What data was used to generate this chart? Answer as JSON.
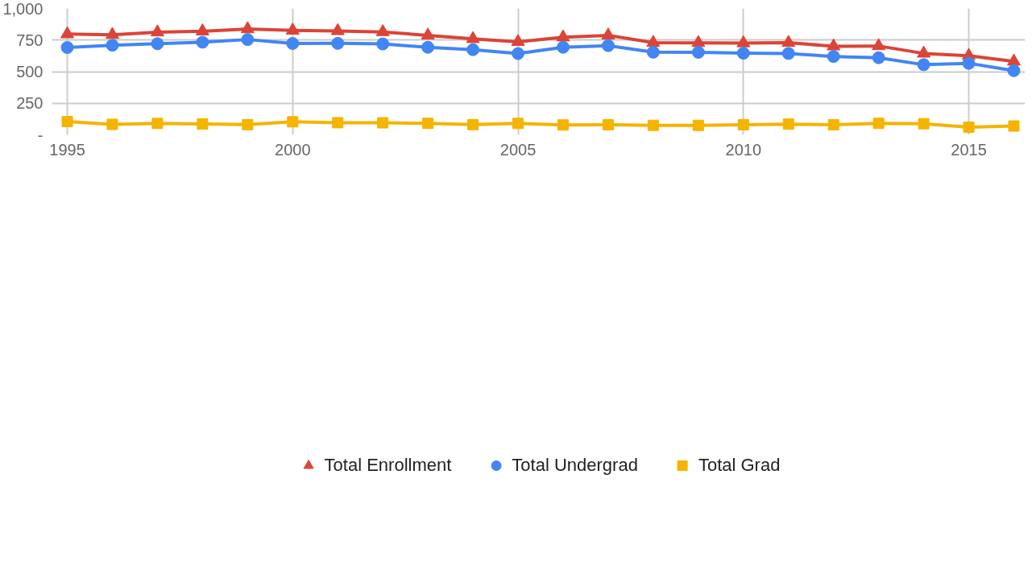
{
  "chart_data": {
    "type": "line",
    "x": [
      1995,
      1996,
      1997,
      1998,
      1999,
      2000,
      2001,
      2002,
      2003,
      2004,
      2005,
      2006,
      2007,
      2008,
      2009,
      2010,
      2011,
      2012,
      2013,
      2014,
      2015,
      2016
    ],
    "series": [
      {
        "name": "Total Enrollment",
        "color": "#db4437",
        "marker": "triangle",
        "values": [
          797,
          792,
          812,
          820,
          837,
          826,
          822,
          814,
          787,
          759,
          736,
          772,
          787,
          729,
          728,
          726,
          729,
          701,
          703,
          644,
          626,
          581
        ]
      },
      {
        "name": "Total Undergrad",
        "color": "#4285f4",
        "marker": "circle",
        "values": [
          691,
          709,
          721,
          733,
          754,
          723,
          724,
          719,
          693,
          674,
          643,
          693,
          706,
          654,
          653,
          646,
          644,
          620,
          610,
          555,
          566,
          508
        ]
      },
      {
        "name": "Total Grad",
        "color": "#f4b400",
        "marker": "square",
        "values": [
          105,
          83,
          90,
          86,
          81,
          103,
          96,
          95,
          91,
          81,
          90,
          78,
          80,
          75,
          75,
          80,
          85,
          80,
          91,
          88,
          60,
          70
        ]
      }
    ],
    "xlim": [
      1994.66,
      2016.25
    ],
    "xticks": [
      1995,
      2000,
      2005,
      2010,
      2015
    ],
    "ylim": [
      0,
      1000
    ],
    "yticks": [
      {
        "value": 0,
        "label": "-"
      },
      250,
      500,
      750,
      {
        "value": 1000,
        "label": "1,000"
      }
    ],
    "grid": true,
    "legend": "bottom",
    "line_style": "solid"
  }
}
